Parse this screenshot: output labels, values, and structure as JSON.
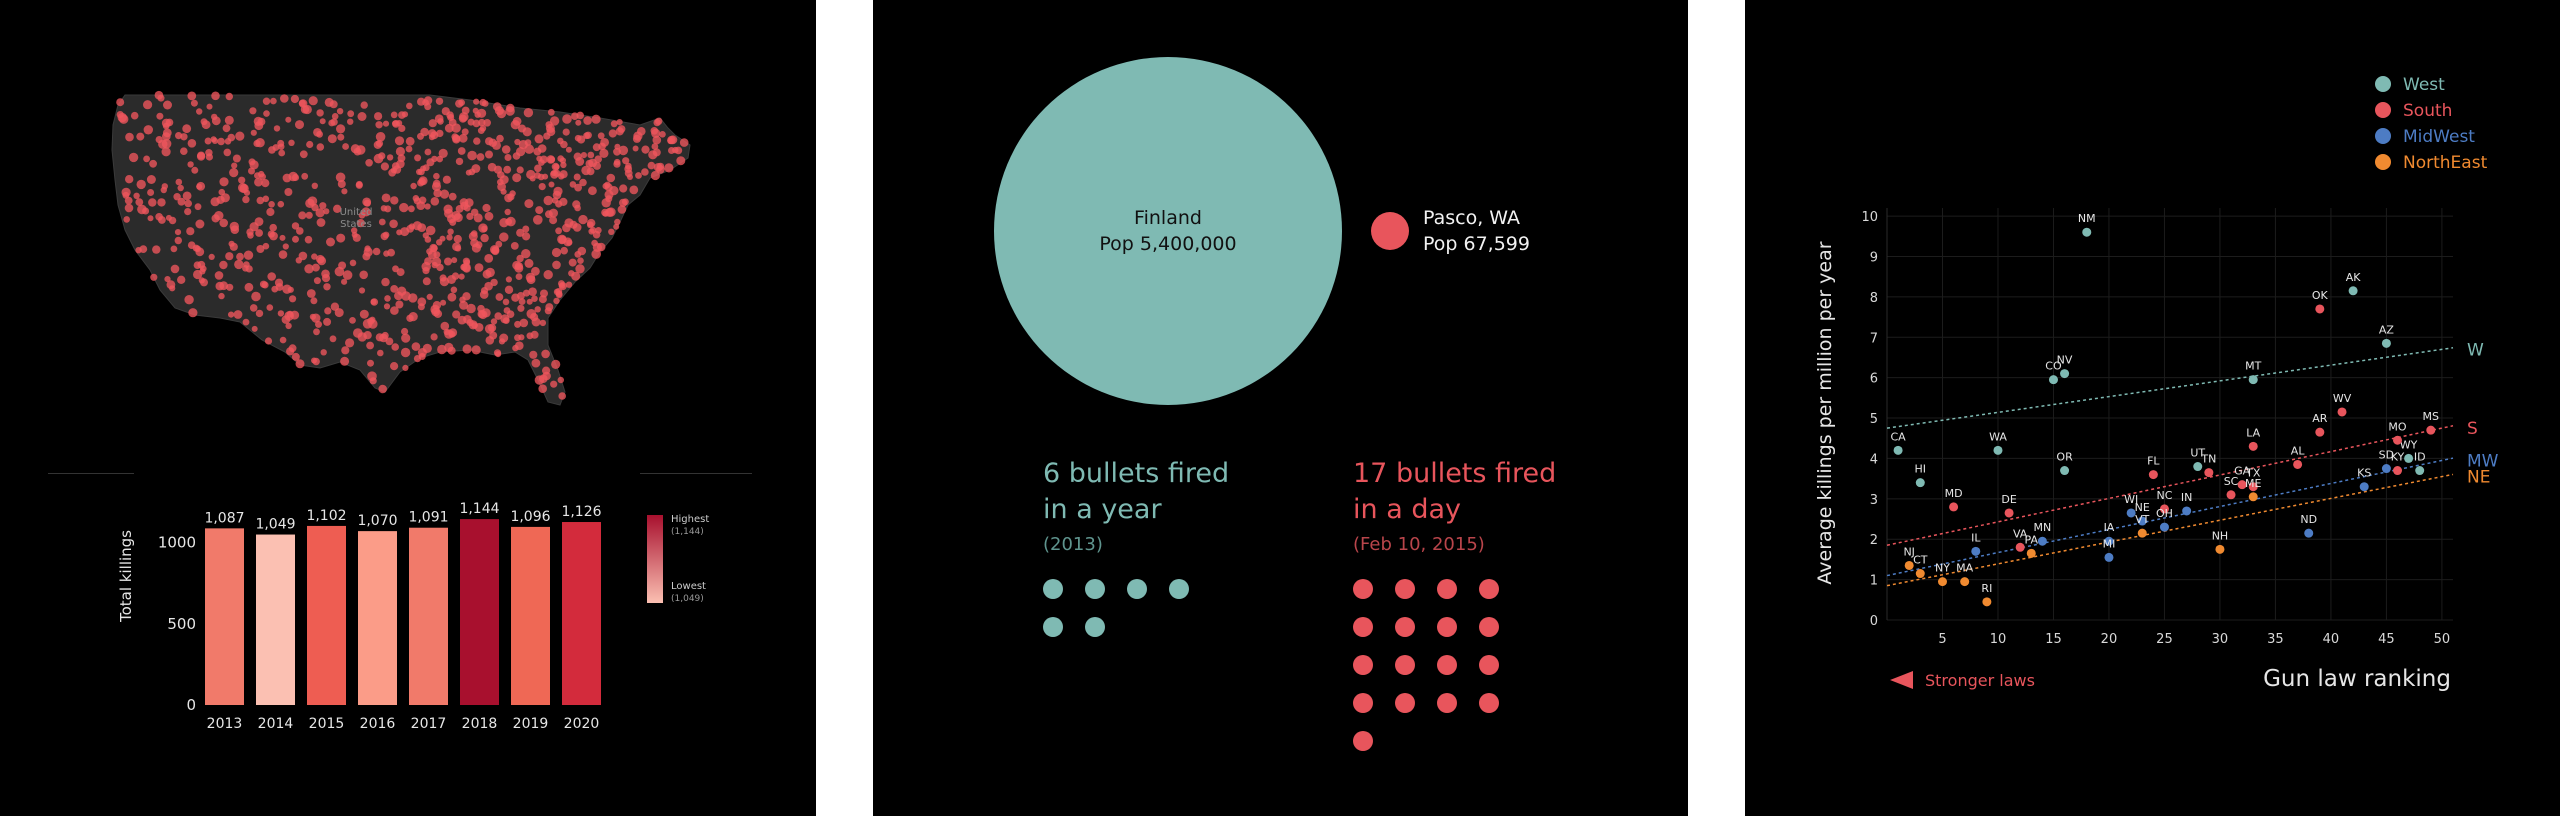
{
  "colors": {
    "panel_bg": "#000000",
    "teal": "#7fbab3",
    "red": "#e8555c",
    "blue": "#4d7cc4",
    "orange": "#f08a30",
    "map_bg": "#2b2b2b"
  },
  "panel1": {
    "map_labels": [
      "United",
      "States"
    ],
    "chart": {
      "type": "bar",
      "categories": [
        "2013",
        "2014",
        "2015",
        "2016",
        "2017",
        "2018",
        "2019",
        "2020"
      ],
      "values": [
        1087,
        1049,
        1102,
        1070,
        1091,
        1144,
        1096,
        1126
      ],
      "value_labels": [
        "1,087",
        "1,049",
        "1,102",
        "1,070",
        "1,091",
        "1,144",
        "1,096",
        "1,126"
      ],
      "bar_colors": [
        "#f17a6a",
        "#fbc0b2",
        "#ee5d52",
        "#fb9c88",
        "#f17a6a",
        "#a8102e",
        "#ef6855",
        "#d32b3c"
      ],
      "ylabel": "Total killings",
      "yticks": [
        {
          "value": 0,
          "label": "0"
        },
        {
          "value": 500,
          "label": "500"
        },
        {
          "value": 1000,
          "label": "1000"
        }
      ],
      "ylim": [
        0,
        1200
      ],
      "legend": {
        "high_label": "Highest",
        "high_value": "(1,144)",
        "low_label": "Lowest",
        "low_value": "(1,049)",
        "high_color": "#a8102e",
        "low_color": "#fbc0b2"
      }
    }
  },
  "panel2": {
    "finland": {
      "name": "Finland",
      "pop": "Pop 5,400,000",
      "population": 5400000
    },
    "pasco": {
      "name": "Pasco, WA",
      "pop": "Pop 67,599",
      "population": 67599
    },
    "left_block": {
      "line1": "6 bullets fired",
      "line2": "in a year",
      "sub": "(2013)",
      "count": 6
    },
    "right_block": {
      "line1": "17 bullets fired",
      "line2": "in a day",
      "sub": "(Feb 10, 2015)",
      "count": 17
    }
  },
  "panel3": {
    "chart_data": {
      "type": "scatter",
      "xlabel": "Gun law ranking",
      "ylabel": "Average killings per million per year",
      "xlim": [
        0,
        51
      ],
      "ylim": [
        0,
        10.2
      ],
      "xticks": [
        5,
        10,
        15,
        20,
        25,
        30,
        35,
        40,
        45,
        50
      ],
      "yticks": [
        0,
        1,
        2,
        3,
        4,
        5,
        6,
        7,
        8,
        9,
        10
      ],
      "arrow_label": "Stronger laws",
      "legend": [
        {
          "name": "West",
          "key": "W"
        },
        {
          "name": "South",
          "key": "S"
        },
        {
          "name": "MidWest",
          "key": "MW"
        },
        {
          "name": "NorthEast",
          "key": "NE"
        }
      ],
      "trend_labels": {
        "W": "W",
        "S": "S",
        "MW": "MW",
        "NE": "NE"
      },
      "trendlines": {
        "W": [
          [
            0,
            4.75
          ],
          [
            50,
            6.7
          ]
        ],
        "S": [
          [
            0,
            1.85
          ],
          [
            50,
            4.75
          ]
        ],
        "MW": [
          [
            0,
            1.1
          ],
          [
            50,
            3.95
          ]
        ],
        "NE": [
          [
            0,
            0.85
          ],
          [
            50,
            3.55
          ]
        ]
      },
      "points": [
        {
          "label": "CA",
          "x": 1,
          "y": 4.2,
          "r": "W"
        },
        {
          "label": "HI",
          "x": 3,
          "y": 3.4,
          "r": "W"
        },
        {
          "label": "WA",
          "x": 10,
          "y": 4.2,
          "r": "W"
        },
        {
          "label": "OR",
          "x": 16,
          "y": 3.7,
          "r": "W"
        },
        {
          "label": "CO",
          "x": 15,
          "y": 5.95,
          "r": "W"
        },
        {
          "label": "NV",
          "x": 16,
          "y": 6.1,
          "r": "W"
        },
        {
          "label": "NM",
          "x": 18,
          "y": 9.6,
          "r": "W"
        },
        {
          "label": "UT",
          "x": 28,
          "y": 3.8,
          "r": "W"
        },
        {
          "label": "MT",
          "x": 33,
          "y": 5.95,
          "r": "W"
        },
        {
          "label": "AK",
          "x": 42,
          "y": 8.15,
          "r": "W"
        },
        {
          "label": "AZ",
          "x": 45,
          "y": 6.85,
          "r": "W"
        },
        {
          "label": "WY",
          "x": 47,
          "y": 4.0,
          "r": "W"
        },
        {
          "label": "ID",
          "x": 48,
          "y": 3.7,
          "r": "W"
        },
        {
          "label": "MD",
          "x": 6,
          "y": 2.8,
          "r": "S"
        },
        {
          "label": "DE",
          "x": 11,
          "y": 2.65,
          "r": "S"
        },
        {
          "label": "VA",
          "x": 12,
          "y": 1.8,
          "r": "S"
        },
        {
          "label": "FL",
          "x": 24,
          "y": 3.6,
          "r": "S"
        },
        {
          "label": "NC",
          "x": 25,
          "y": 2.75,
          "r": "S"
        },
        {
          "label": "TN",
          "x": 29,
          "y": 3.65,
          "r": "S"
        },
        {
          "label": "SC",
          "x": 31,
          "y": 3.1,
          "r": "S"
        },
        {
          "label": "GA",
          "x": 32,
          "y": 3.35,
          "r": "S"
        },
        {
          "label": "LA",
          "x": 33,
          "y": 4.3,
          "r": "S"
        },
        {
          "label": "TX",
          "x": 33,
          "y": 3.3,
          "r": "S"
        },
        {
          "label": "AL",
          "x": 37,
          "y": 3.85,
          "r": "S"
        },
        {
          "label": "AR",
          "x": 39,
          "y": 4.65,
          "r": "S"
        },
        {
          "label": "WV",
          "x": 41,
          "y": 5.15,
          "r": "S"
        },
        {
          "label": "OK",
          "x": 39,
          "y": 7.7,
          "r": "S"
        },
        {
          "label": "KY",
          "x": 46,
          "y": 3.7,
          "r": "S"
        },
        {
          "label": "MS",
          "x": 49,
          "y": 4.7,
          "r": "S"
        },
        {
          "label": "MO",
          "x": 46,
          "y": 4.45,
          "r": "S"
        },
        {
          "label": "IL",
          "x": 8,
          "y": 1.7,
          "r": "MW"
        },
        {
          "label": "MN",
          "x": 14,
          "y": 1.95,
          "r": "MW"
        },
        {
          "label": "WI",
          "x": 22,
          "y": 2.65,
          "r": "MW"
        },
        {
          "label": "NE",
          "x": 23,
          "y": 2.45,
          "r": "MW"
        },
        {
          "label": "IA",
          "x": 20,
          "y": 1.95,
          "r": "MW"
        },
        {
          "label": "MI",
          "x": 20,
          "y": 1.55,
          "r": "MW"
        },
        {
          "label": "OH",
          "x": 25,
          "y": 2.3,
          "r": "MW"
        },
        {
          "label": "IN",
          "x": 27,
          "y": 2.7,
          "r": "MW"
        },
        {
          "label": "KS",
          "x": 43,
          "y": 3.3,
          "r": "MW"
        },
        {
          "label": "SD",
          "x": 45,
          "y": 3.75,
          "r": "MW"
        },
        {
          "label": "ND",
          "x": 38,
          "y": 2.15,
          "r": "MW"
        },
        {
          "label": "NJ",
          "x": 2,
          "y": 1.35,
          "r": "NE"
        },
        {
          "label": "CT",
          "x": 3,
          "y": 1.15,
          "r": "NE"
        },
        {
          "label": "NY",
          "x": 5,
          "y": 0.95,
          "r": "NE"
        },
        {
          "label": "MA",
          "x": 7,
          "y": 0.95,
          "r": "NE"
        },
        {
          "label": "RI",
          "x": 9,
          "y": 0.45,
          "r": "NE"
        },
        {
          "label": "PA",
          "x": 13,
          "y": 1.65,
          "r": "NE"
        },
        {
          "label": "VT",
          "x": 23,
          "y": 2.15,
          "r": "NE"
        },
        {
          "label": "ME",
          "x": 33,
          "y": 3.05,
          "r": "NE"
        },
        {
          "label": "NH",
          "x": 30,
          "y": 1.75,
          "r": "NE"
        }
      ]
    }
  }
}
